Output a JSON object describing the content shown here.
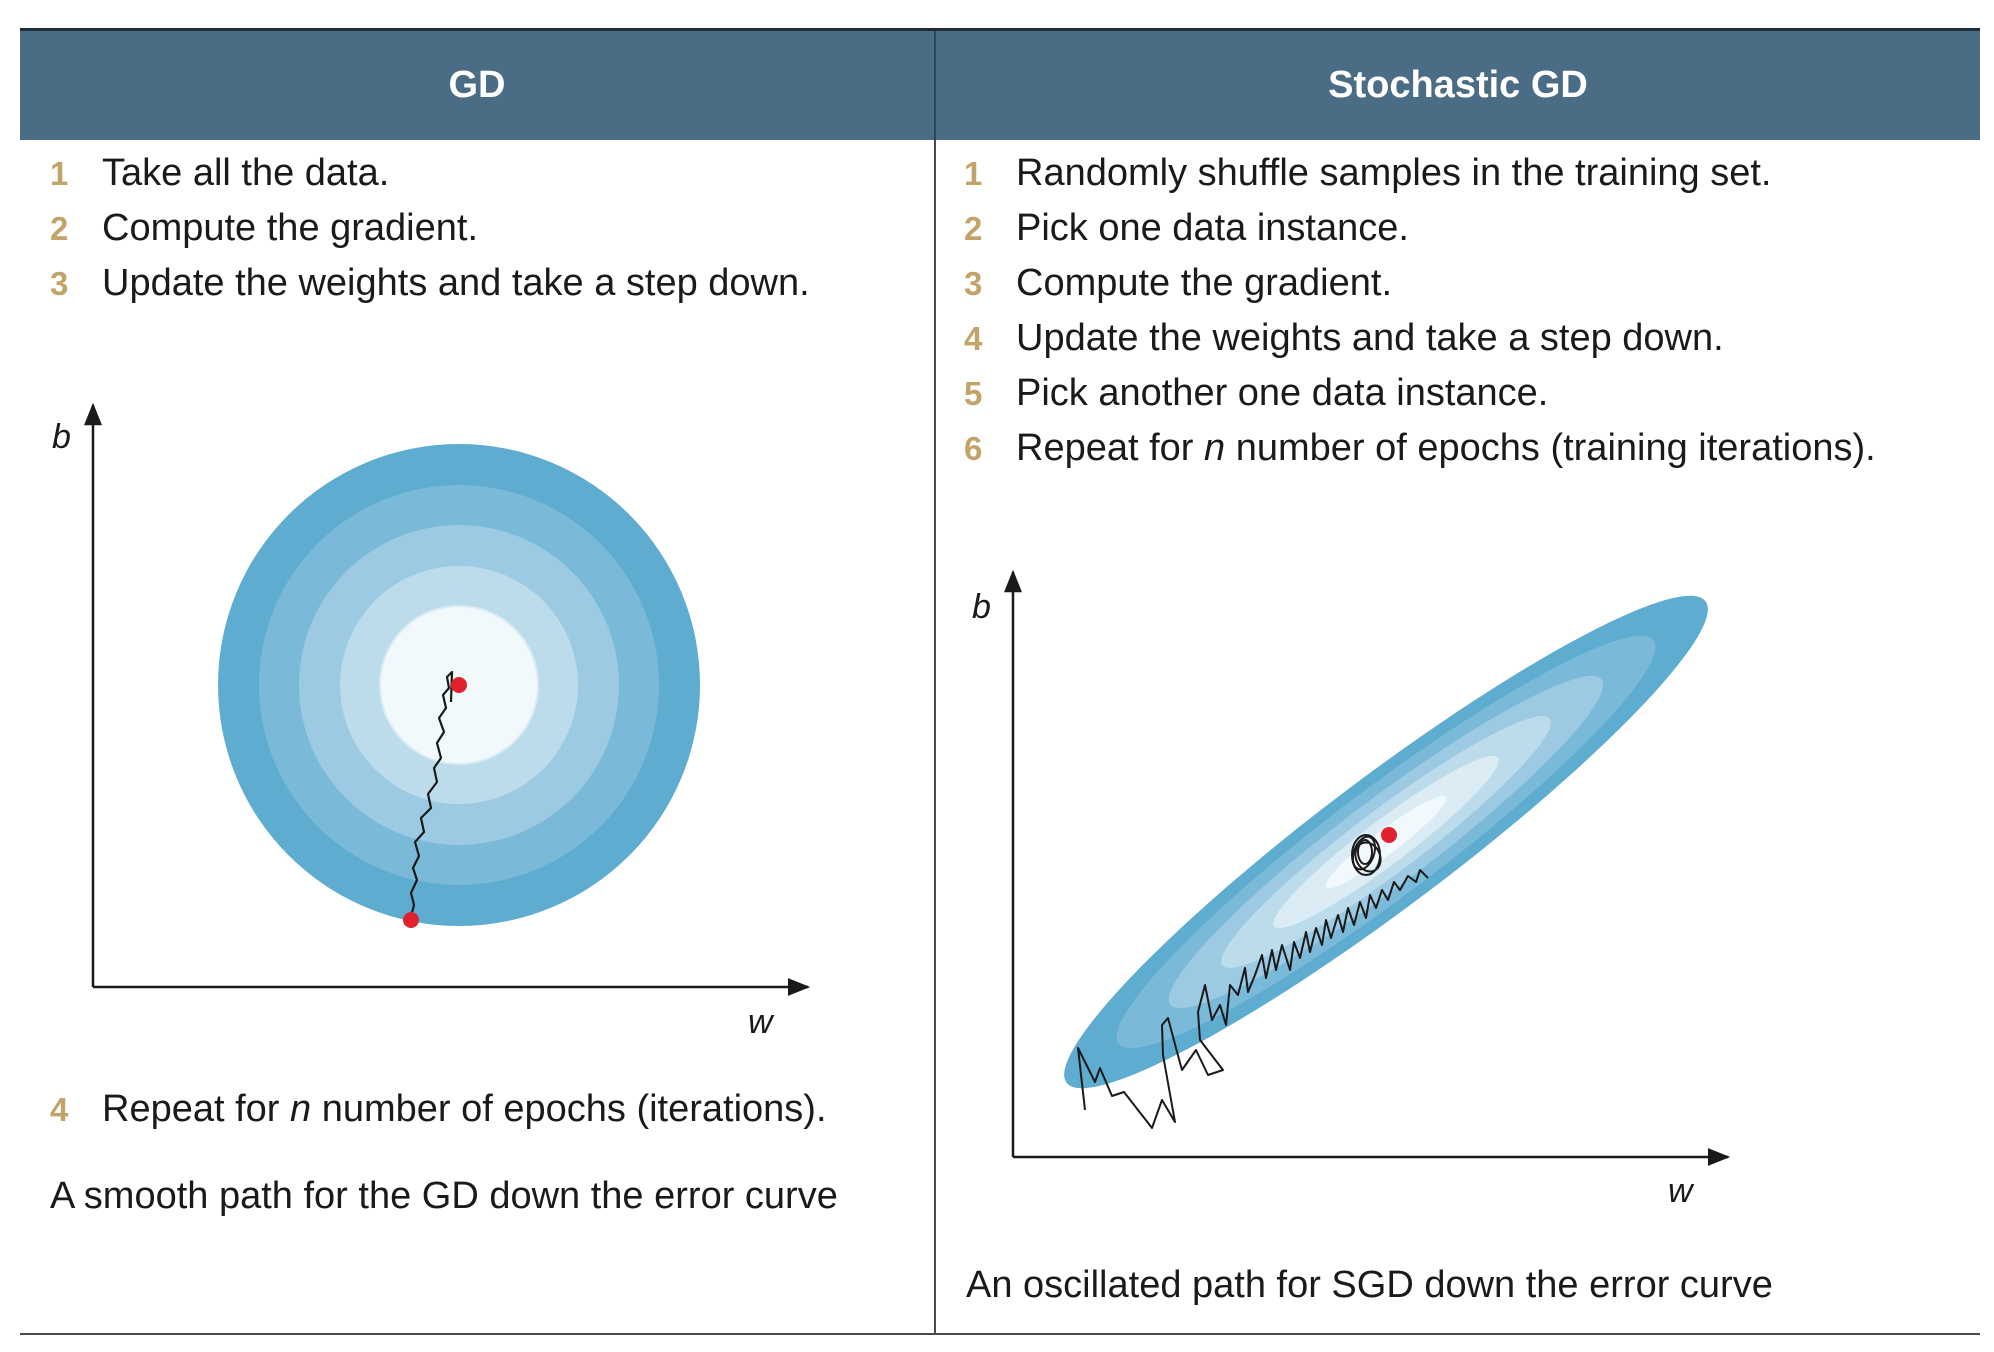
{
  "header": {
    "left_title": "GD",
    "right_title": "Stochastic GD"
  },
  "gd": {
    "steps": [
      {
        "num": "1",
        "text": "Take all the data."
      },
      {
        "num": "2",
        "text": "Compute the gradient."
      },
      {
        "num": "3",
        "text": "Update the weights and take a step down."
      }
    ],
    "step4": {
      "num": "4",
      "pre": "Repeat for ",
      "var": "n",
      "post": " number of epochs (iterations)."
    },
    "caption": "A smooth path for the GD down the error curve",
    "axis_x": "w",
    "axis_y": "b"
  },
  "sgd": {
    "steps": [
      {
        "num": "1",
        "text": "Randomly shuffle samples in the training set."
      },
      {
        "num": "2",
        "text": "Pick one data instance."
      },
      {
        "num": "3",
        "text": "Compute the gradient."
      },
      {
        "num": "4",
        "text": "Update the weights and take a step down."
      },
      {
        "num": "5",
        "text": "Pick another one data instance."
      },
      {
        "num": "6",
        "pre": "Repeat for ",
        "var": "n",
        "post": " number of epochs (training iterations)."
      }
    ],
    "caption": "An oscillated path for SGD down the error curve",
    "axis_x": "w",
    "axis_y": "b"
  },
  "colors": {
    "header_bg": "#4a6c85",
    "step_number": "#c2a46a",
    "contour_ramp": [
      "#5eacd0",
      "#7bb9d8",
      "#9bcae2",
      "#bcdcec",
      "#dbecf5",
      "#f2f9fc"
    ],
    "point": "#e0222f"
  }
}
